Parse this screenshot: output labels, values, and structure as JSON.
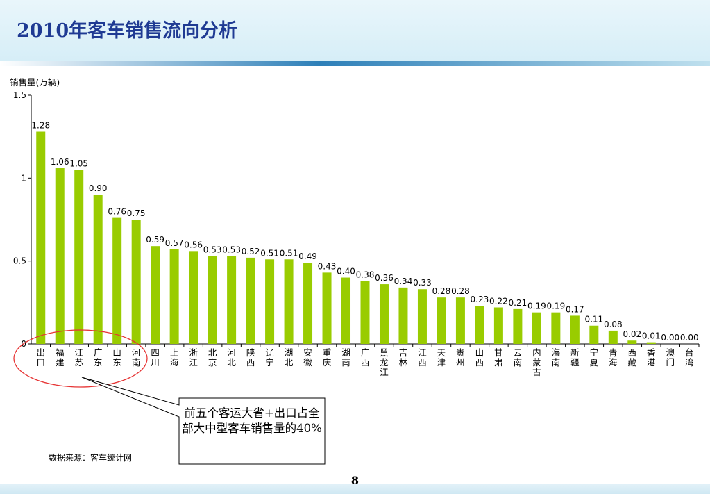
{
  "slide": {
    "title": "2010年客车销售流向分析",
    "page_number": "8",
    "source_note": "数据来源：客车统计网",
    "callout_text": "前五个客运大省+出口占全部大中型客车销售量的40%"
  },
  "colors": {
    "bar": "#99cc00",
    "title": "#1f3a93",
    "ellipse": "#e63333"
  },
  "chart_data": {
    "type": "bar",
    "ylabel": "销售量(万辆)",
    "ylim": [
      0,
      1.5
    ],
    "yticks": [
      "0",
      "0.5",
      "1",
      "1.5"
    ],
    "ytick_values": [
      0,
      0.5,
      1,
      1.5
    ],
    "grid": false,
    "categories": [
      "出口",
      "福建",
      "江苏",
      "广东",
      "山东",
      "河南",
      "四川",
      "上海",
      "浙江",
      "北京",
      "河北",
      "陕西",
      "辽宁",
      "湖北",
      "安徽",
      "重庆",
      "湖南",
      "广西",
      "黑龙江",
      "吉林",
      "江西",
      "天津",
      "贵州",
      "山西",
      "甘肃",
      "云南",
      "内蒙古",
      "海南",
      "新疆",
      "宁夏",
      "青海",
      "西藏",
      "香港",
      "澳门",
      "台湾"
    ],
    "values": [
      1.28,
      1.06,
      1.05,
      0.9,
      0.76,
      0.75,
      0.59,
      0.57,
      0.56,
      0.53,
      0.53,
      0.52,
      0.51,
      0.51,
      0.49,
      0.43,
      0.4,
      0.38,
      0.36,
      0.34,
      0.33,
      0.28,
      0.28,
      0.23,
      0.22,
      0.21,
      0.19,
      0.19,
      0.17,
      0.11,
      0.08,
      0.02,
      0.01,
      0.0,
      0.0
    ],
    "value_labels": [
      "1.28",
      "1.06",
      "1.05",
      "0.90",
      "0.76",
      "0.75",
      "0.59",
      "0.57",
      "0.56",
      "0.53",
      "0.53",
      "0.52",
      "0.51",
      "0.51",
      "0.49",
      "0.43",
      "0.40",
      "0.38",
      "0.36",
      "0.34",
      "0.33",
      "0.28",
      "0.28",
      "0.23",
      "0.22",
      "0.21",
      "0.19",
      "0.19",
      "0.17",
      "0.11",
      "0.08",
      "0.02",
      "0.01",
      "0.00",
      "0.00"
    ]
  }
}
